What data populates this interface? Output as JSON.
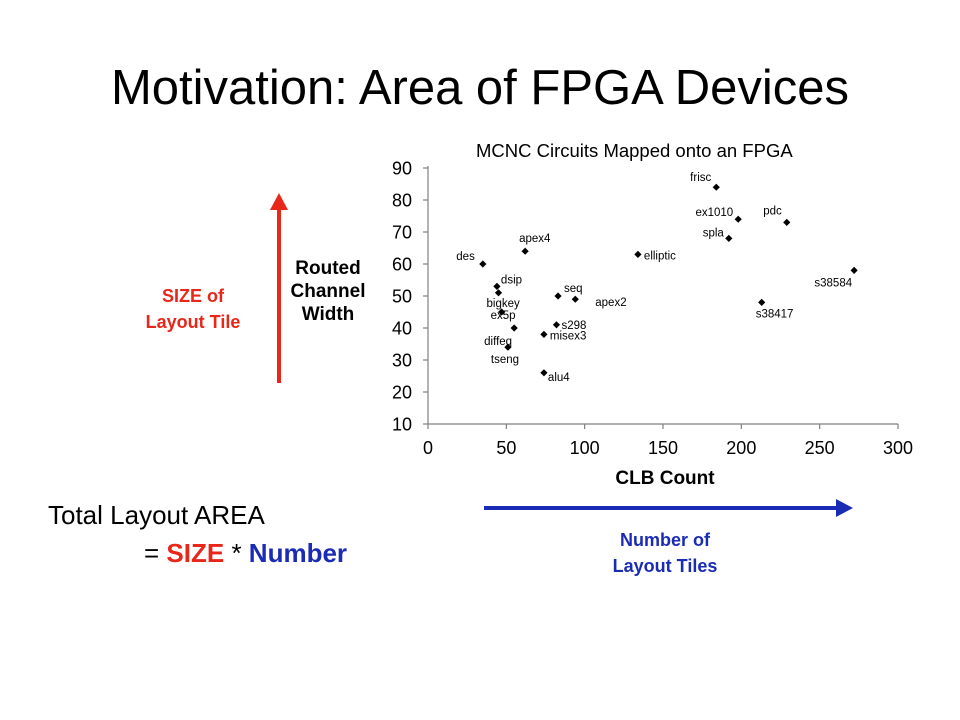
{
  "slide": {
    "title": "Motivation: Area of FPGA Devices",
    "size_label": [
      "SIZE of",
      "Layout Tile"
    ],
    "number_label": [
      "Number of",
      "Layout Tiles"
    ],
    "total": {
      "line1": "Total Layout AREA",
      "eq": "= ",
      "size": "SIZE",
      "times": " * ",
      "number": "Number"
    },
    "colors": {
      "size_accent": "#e8261a",
      "number_accent": "#1a2bb5"
    }
  },
  "chart_data": {
    "type": "scatter",
    "title": "MCNC Circuits Mapped onto an FPGA",
    "xlabel": "CLB Count",
    "ylabel_lines": [
      "Routed",
      "Channel",
      "Width"
    ],
    "xlim": [
      0,
      300
    ],
    "ylim": [
      10,
      90
    ],
    "xticks": [
      0,
      50,
      100,
      150,
      200,
      250,
      300
    ],
    "yticks": [
      10,
      20,
      30,
      40,
      50,
      60,
      70,
      80,
      90
    ],
    "grid": false,
    "marker": "diamond",
    "points": [
      {
        "label": "frisc",
        "x": 184,
        "y": 84
      },
      {
        "label": "ex1010",
        "x": 198,
        "y": 74
      },
      {
        "label": "pdc",
        "x": 229,
        "y": 73
      },
      {
        "label": "spla",
        "x": 192,
        "y": 68
      },
      {
        "label": "apex4",
        "x": 62,
        "y": 64
      },
      {
        "label": "elliptic",
        "x": 134,
        "y": 63
      },
      {
        "label": "des",
        "x": 35,
        "y": 60
      },
      {
        "label": "s38584",
        "x": 272,
        "y": 58
      },
      {
        "label": "dsip",
        "x": 44,
        "y": 53
      },
      {
        "label": "bigkey",
        "x": 45,
        "y": 51
      },
      {
        "label": "seq",
        "x": 83,
        "y": 50
      },
      {
        "label": "apex2",
        "x": 94,
        "y": 49
      },
      {
        "label": "s38417",
        "x": 213,
        "y": 48
      },
      {
        "label": "ex5p",
        "x": 47,
        "y": 45
      },
      {
        "label": "s298",
        "x": 82,
        "y": 41
      },
      {
        "label": "diffeq",
        "x": 55,
        "y": 40
      },
      {
        "label": "misex3",
        "x": 74,
        "y": 38
      },
      {
        "label": "tseng",
        "x": 51,
        "y": 34
      },
      {
        "label": "alu4",
        "x": 74,
        "y": 26
      }
    ]
  }
}
